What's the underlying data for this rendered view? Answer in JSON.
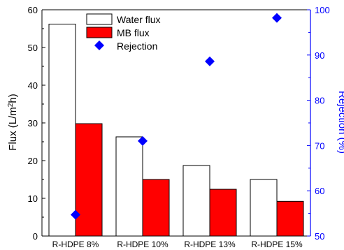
{
  "chart_data": {
    "type": "bar",
    "categories": [
      "R-HDPE 8%",
      "R-HDPE 10%",
      "R-HDPE 13%",
      "R-HDPE 15%"
    ],
    "series": [
      {
        "name": "Water flux",
        "kind": "bar",
        "axis": "left",
        "values": [
          56.2,
          26.3,
          18.7,
          15.0
        ],
        "fill": "#ffffff",
        "stroke": "#000000"
      },
      {
        "name": "MB flux",
        "kind": "bar",
        "axis": "left",
        "values": [
          29.8,
          15.0,
          12.4,
          9.2
        ],
        "fill": "#ff0000",
        "stroke": "#000000"
      },
      {
        "name": "Rejection",
        "kind": "scatter",
        "marker": "diamond",
        "axis": "right",
        "values": [
          54.7,
          71.0,
          88.6,
          98.2
        ],
        "color": "#0000ff"
      }
    ],
    "ylabel_left": {
      "prefix": "Flux (L/m",
      "sup": "2",
      "suffix": "h)"
    },
    "ylabel_right": "Rejection (%)",
    "ylim_left": [
      0,
      60
    ],
    "ylim_right": [
      50,
      100
    ],
    "yticks_left": [
      "0",
      "10",
      "20",
      "30",
      "40",
      "50",
      "60"
    ],
    "yticks_right": [
      "50",
      "60",
      "70",
      "80",
      "90",
      "100"
    ],
    "right_axis_color": "#0000ff",
    "legend_position": "top-center",
    "grid": false
  }
}
